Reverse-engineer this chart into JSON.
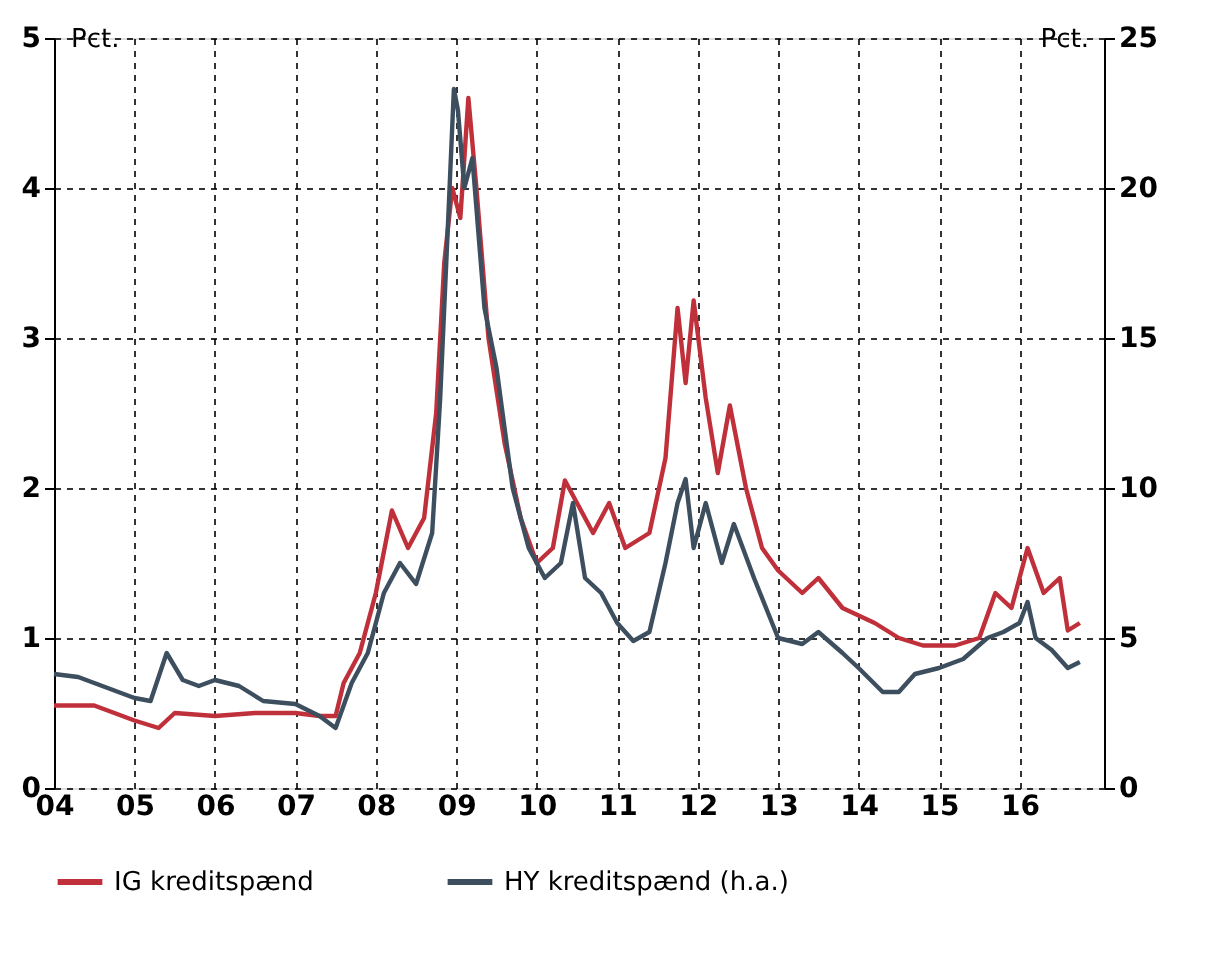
{
  "chart_data": {
    "type": "line",
    "ylabel": "Pct.",
    "y2label": "Pct.",
    "xlim": [
      2004,
      2017.05
    ],
    "xticks": [
      {
        "value": 2004,
        "label": "04"
      },
      {
        "value": 2005,
        "label": "05"
      },
      {
        "value": 2006,
        "label": "06"
      },
      {
        "value": 2007,
        "label": "07"
      },
      {
        "value": 2008,
        "label": "08"
      },
      {
        "value": 2009,
        "label": "09"
      },
      {
        "value": 2010,
        "label": "10"
      },
      {
        "value": 2011,
        "label": "11"
      },
      {
        "value": 2012,
        "label": "12"
      },
      {
        "value": 2013,
        "label": "13"
      },
      {
        "value": 2014,
        "label": "14"
      },
      {
        "value": 2015,
        "label": "15"
      },
      {
        "value": 2016,
        "label": "16"
      }
    ],
    "ylim": [
      0,
      5
    ],
    "yticks": [
      0,
      1,
      2,
      3,
      4,
      5
    ],
    "y2lim": [
      0,
      25
    ],
    "y2ticks": [
      0,
      5,
      10,
      15,
      20,
      25
    ],
    "grid": true,
    "legend": "bottom",
    "line_style": "solid",
    "marker": "none",
    "series": [
      {
        "name": "IG kreditspænd",
        "color": "#c0303a",
        "x": [
          2004.0,
          2004.5,
          2005.0,
          2005.3,
          2005.5,
          2006.0,
          2006.5,
          2007.0,
          2007.3,
          2007.5,
          2007.6,
          2007.8,
          2008.0,
          2008.2,
          2008.4,
          2008.6,
          2008.75,
          2008.85,
          2008.95,
          2009.05,
          2009.15,
          2009.25,
          2009.4,
          2009.6,
          2009.8,
          2010.0,
          2010.2,
          2010.35,
          2010.5,
          2010.7,
          2010.9,
          2011.1,
          2011.4,
          2011.6,
          2011.75,
          2011.85,
          2011.95,
          2012.1,
          2012.25,
          2012.4,
          2012.6,
          2012.8,
          2013.0,
          2013.3,
          2013.5,
          2013.8,
          2014.2,
          2014.5,
          2014.8,
          2015.2,
          2015.5,
          2015.7,
          2015.9,
          2016.1,
          2016.3,
          2016.5,
          2016.6,
          2016.75
        ],
        "values": [
          0.55,
          0.55,
          0.45,
          0.4,
          0.5,
          0.48,
          0.5,
          0.5,
          0.48,
          0.48,
          0.7,
          0.9,
          1.3,
          1.85,
          1.6,
          1.8,
          2.5,
          3.5,
          4.0,
          3.8,
          4.6,
          4.0,
          3.0,
          2.3,
          1.8,
          1.5,
          1.6,
          2.05,
          1.9,
          1.7,
          1.9,
          1.6,
          1.7,
          2.2,
          3.2,
          2.7,
          3.25,
          2.6,
          2.1,
          2.55,
          2.0,
          1.6,
          1.45,
          1.3,
          1.4,
          1.2,
          1.1,
          1.0,
          0.95,
          0.95,
          1.0,
          1.3,
          1.2,
          1.6,
          1.3,
          1.4,
          1.05,
          1.1
        ]
      },
      {
        "name": "HY kreditspænd (h.a.)",
        "color": "#3d4f5f",
        "axis": "y2",
        "x": [
          2004.0,
          2004.3,
          2004.7,
          2005.0,
          2005.2,
          2005.4,
          2005.6,
          2005.8,
          2006.0,
          2006.3,
          2006.6,
          2007.0,
          2007.3,
          2007.5,
          2007.7,
          2007.9,
          2008.1,
          2008.3,
          2008.5,
          2008.7,
          2008.8,
          2008.9,
          2008.97,
          2009.02,
          2009.1,
          2009.2,
          2009.35,
          2009.5,
          2009.7,
          2009.9,
          2010.1,
          2010.3,
          2010.45,
          2010.6,
          2010.8,
          2011.0,
          2011.2,
          2011.4,
          2011.6,
          2011.75,
          2011.85,
          2011.95,
          2012.1,
          2012.3,
          2012.45,
          2012.7,
          2013.0,
          2013.3,
          2013.5,
          2013.8,
          2014.0,
          2014.3,
          2014.5,
          2014.7,
          2015.0,
          2015.3,
          2015.6,
          2015.8,
          2016.0,
          2016.1,
          2016.2,
          2016.4,
          2016.6,
          2016.75
        ],
        "values": [
          3.8,
          3.7,
          3.3,
          3.0,
          2.9,
          4.5,
          3.6,
          3.4,
          3.6,
          3.4,
          2.9,
          2.8,
          2.4,
          2.0,
          3.5,
          4.5,
          6.5,
          7.5,
          6.8,
          8.5,
          13,
          19,
          23.3,
          22.6,
          20,
          21,
          16,
          14,
          10,
          8,
          7,
          7.5,
          9.5,
          7,
          6.5,
          5.5,
          4.9,
          5.2,
          7.5,
          9.5,
          10.3,
          8.0,
          9.5,
          7.5,
          8.8,
          7.0,
          5.0,
          4.8,
          5.2,
          4.5,
          4.0,
          3.2,
          3.2,
          3.8,
          4.0,
          4.3,
          5.0,
          5.2,
          5.5,
          6.2,
          5.0,
          4.6,
          4.0,
          4.2
        ]
      }
    ]
  }
}
